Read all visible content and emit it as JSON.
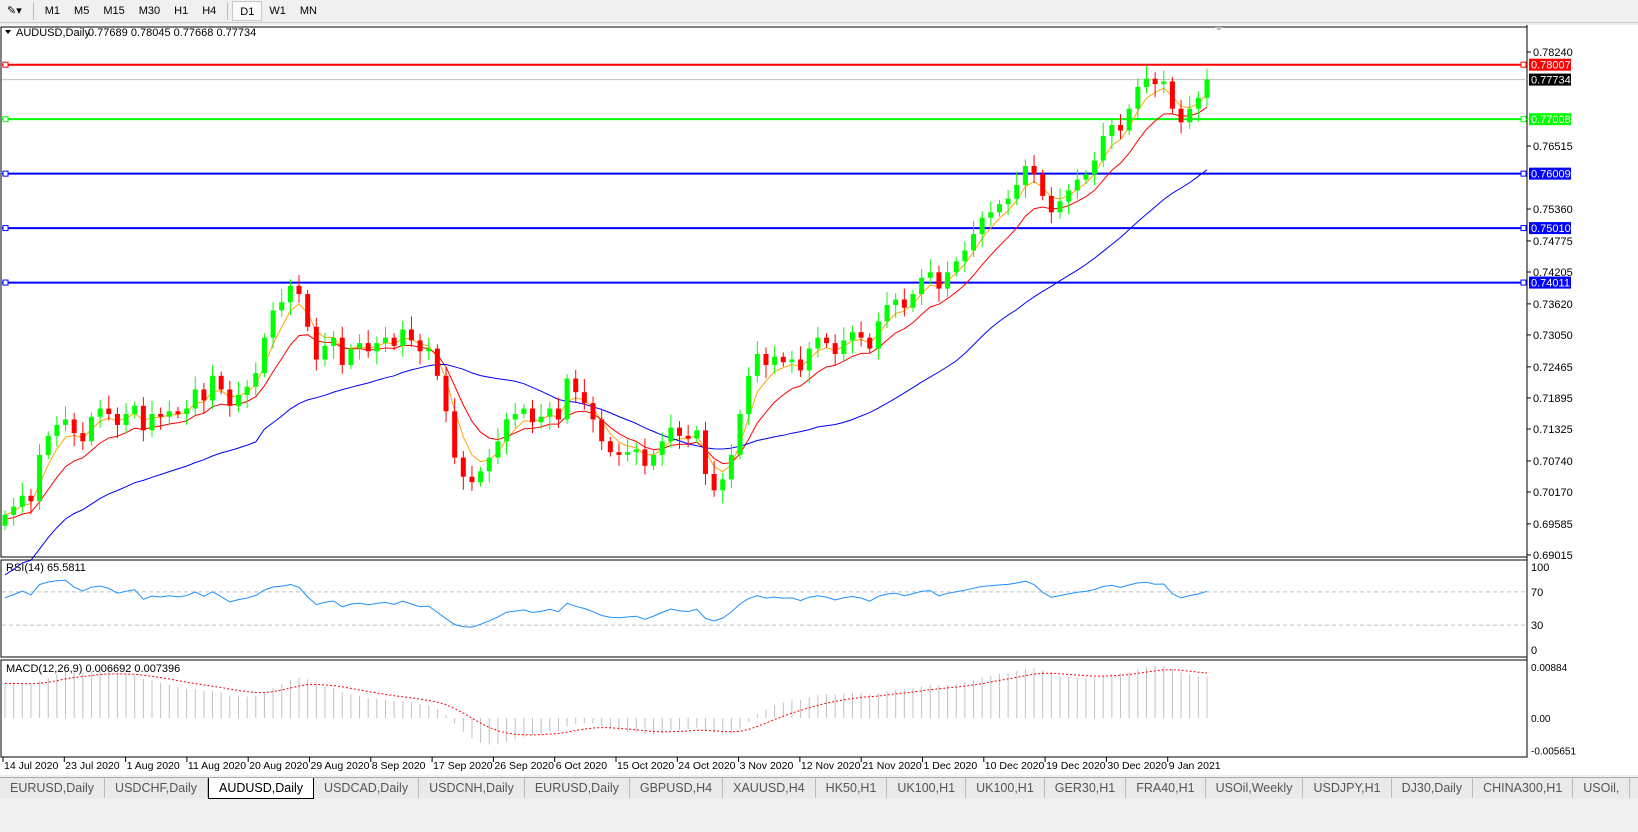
{
  "toolbar": {
    "timeframes": [
      "M1",
      "M5",
      "M15",
      "M30",
      "H1",
      "H4",
      "D1",
      "W1",
      "MN"
    ],
    "active": "D1"
  },
  "chart": {
    "symbol_label": "AUDUSD,Daily",
    "ohlc_label": "0.77689 0.78045 0.77668 0.77734",
    "price_ticks": [
      "0.78240",
      "0.76515",
      "0.75360",
      "0.74775",
      "0.74205",
      "0.73620",
      "0.73050",
      "0.72465",
      "0.71895",
      "0.71325",
      "0.70740",
      "0.70170",
      "0.69585",
      "0.69015"
    ],
    "hlines": [
      {
        "price": 0.78007,
        "label": "0.78007",
        "color": "#ff0000"
      },
      {
        "price": 0.77008,
        "label": "0.77008",
        "color": "#00ff00"
      },
      {
        "price": 0.76009,
        "label": "0.76009",
        "color": "#0000ff"
      },
      {
        "price": 0.7501,
        "label": "0.75010",
        "color": "#0000ff"
      },
      {
        "price": 0.74011,
        "label": "0.74011",
        "color": "#0000ff"
      }
    ],
    "bid": {
      "price": 0.77734,
      "label": "0.77734"
    },
    "colors": {
      "bull": "#00ff00",
      "bear": "#ff0000",
      "ma_fast": "#ffa500",
      "ma_mid": "#ff0000",
      "ma_slow": "#0000ff",
      "rsi": "#1e90ff",
      "macd_hist": "#c0c0c0",
      "macd_signal": "#ff0000"
    },
    "closes": [
      0.6975,
      0.699,
      0.701,
      0.7,
      0.7085,
      0.712,
      0.714,
      0.715,
      0.7125,
      0.711,
      0.7155,
      0.717,
      0.716,
      0.714,
      0.716,
      0.7175,
      0.713,
      0.716,
      0.7155,
      0.7165,
      0.716,
      0.717,
      0.7205,
      0.7185,
      0.723,
      0.7205,
      0.7175,
      0.7195,
      0.721,
      0.7235,
      0.73,
      0.735,
      0.7365,
      0.7395,
      0.738,
      0.732,
      0.726,
      0.7285,
      0.73,
      0.725,
      0.728,
      0.729,
      0.7275,
      0.729,
      0.73,
      0.7285,
      0.7315,
      0.7295,
      0.7275,
      0.728,
      0.723,
      0.7165,
      0.708,
      0.7045,
      0.7035,
      0.7055,
      0.708,
      0.711,
      0.715,
      0.716,
      0.717,
      0.7145,
      0.7155,
      0.717,
      0.715,
      0.7225,
      0.72,
      0.718,
      0.715,
      0.711,
      0.709,
      0.7085,
      0.709,
      0.7095,
      0.7065,
      0.7085,
      0.711,
      0.7135,
      0.712,
      0.7115,
      0.713,
      0.705,
      0.702,
      0.704,
      0.7085,
      0.716,
      0.723,
      0.727,
      0.725,
      0.7265,
      0.7255,
      0.726,
      0.724,
      0.728,
      0.73,
      0.729,
      0.727,
      0.7295,
      0.731,
      0.73,
      0.728,
      0.733,
      0.736,
      0.737,
      0.7355,
      0.738,
      0.741,
      0.742,
      0.739,
      0.742,
      0.744,
      0.746,
      0.749,
      0.752,
      0.753,
      0.7545,
      0.7555,
      0.758,
      0.7615,
      0.76,
      0.756,
      0.753,
      0.755,
      0.757,
      0.759,
      0.76,
      0.7625,
      0.767,
      0.769,
      0.768,
      0.772,
      0.776,
      0.7775,
      0.7765,
      0.777,
      0.772,
      0.7695,
      0.772,
      0.774,
      0.77734
    ]
  },
  "rsi": {
    "label": "RSI(14) 65.5811",
    "levels": [
      "100",
      "70",
      "30",
      "0"
    ]
  },
  "macd": {
    "label": "MACD(12,26,9) 0.006692 0.007396",
    "ticks": [
      "0.00884",
      "0.00",
      "-0.005651"
    ]
  },
  "dates": [
    "14 Jul 2020",
    "23 Jul 2020",
    "1 Aug 2020",
    "11 Aug 2020",
    "20 Aug 2020",
    "29 Aug 2020",
    "8 Sep 2020",
    "17 Sep 2020",
    "26 Sep 2020",
    "6 Oct 2020",
    "15 Oct 2020",
    "24 Oct 2020",
    "3 Nov 2020",
    "12 Nov 2020",
    "21 Nov 2020",
    "1 Dec 2020",
    "10 Dec 2020",
    "19 Dec 2020",
    "30 Dec 2020",
    "9 Jan 2021"
  ],
  "tabs": [
    "EURUSD,Daily",
    "USDCHF,Daily",
    "AUDUSD,Daily",
    "USDCAD,Daily",
    "USDCNH,Daily",
    "EURUSD,Daily",
    "GBPUSD,H4",
    "XAUUSD,H4",
    "HK50,H1",
    "UK100,H1",
    "UK100,H1",
    "GER30,H1",
    "FRA40,H1",
    "USOil,Weekly",
    "USDJPY,H1",
    "DJ30,Daily",
    "CHINA300,H1",
    "USOil,"
  ],
  "active_tab": "AUDUSD,Daily"
}
